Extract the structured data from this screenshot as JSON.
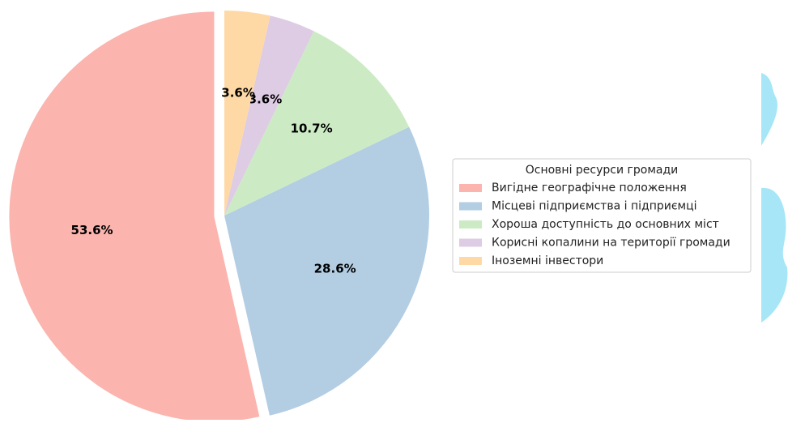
{
  "chart_data": {
    "type": "pie",
    "legend_title": "Основні ресурси громади",
    "categories": [
      "Вигідне географічне положення",
      "Місцеві підприємства і підприємці",
      "Хороша доступність до основних міст",
      "Корисні копалини на території громади",
      "Іноземні інвестори"
    ],
    "values": [
      53.6,
      28.6,
      10.7,
      3.6,
      3.6
    ],
    "value_labels": [
      "53.6%",
      "28.6%",
      "10.7%",
      "3.6%",
      "3.6%"
    ],
    "colors": [
      "#fbb4ae",
      "#b3cde3",
      "#ccebc5",
      "#decbe4",
      "#fed9a6"
    ],
    "explode": [
      0.05,
      0,
      0,
      0,
      0
    ],
    "legend": "right"
  }
}
